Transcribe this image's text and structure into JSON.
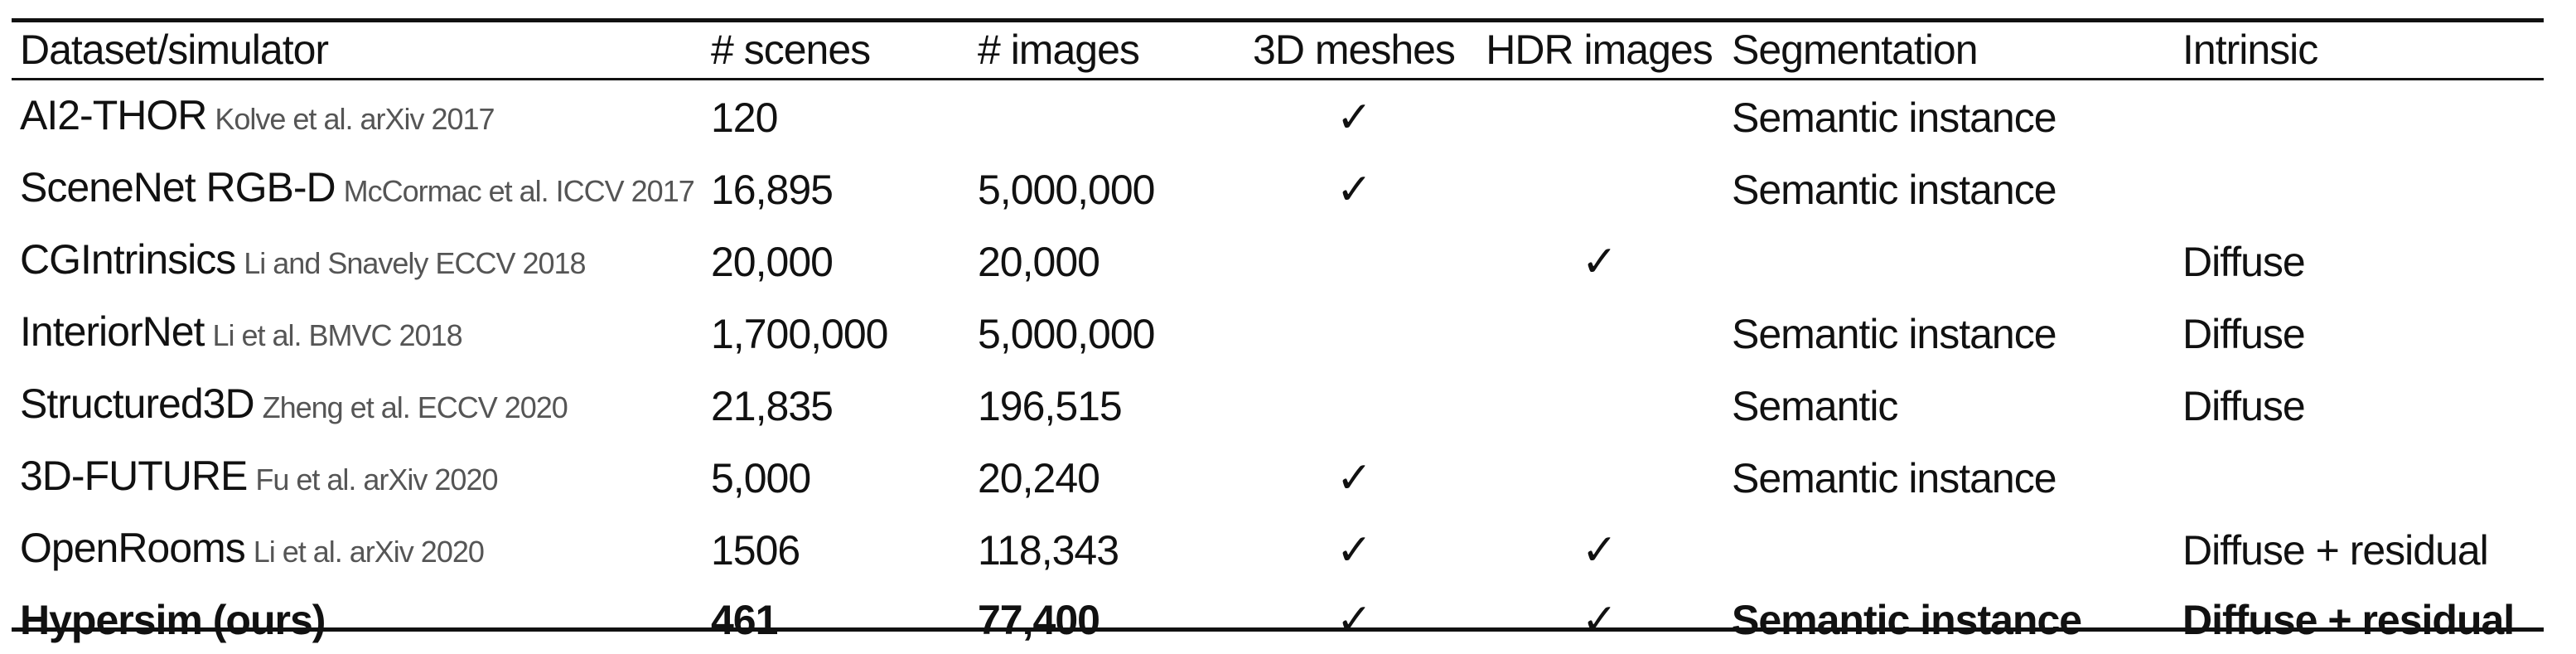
{
  "table": {
    "headers": {
      "dataset": "Dataset/simulator",
      "scenes": "# scenes",
      "images": "# images",
      "meshes": "3D meshes",
      "hdr": "HDR images",
      "segmentation": "Segmentation",
      "intrinsic": "Intrinsic"
    },
    "check_symbol": "✓",
    "rows": [
      {
        "name": "AI2-THOR",
        "citation": "Kolve et al. arXiv 2017",
        "scenes": "120",
        "images": "",
        "meshes": true,
        "hdr": false,
        "segmentation": "Semantic instance",
        "intrinsic": ""
      },
      {
        "name": "SceneNet RGB-D",
        "citation": "McCormac et al. ICCV 2017",
        "scenes": "16,895",
        "images": "5,000,000",
        "meshes": true,
        "hdr": false,
        "segmentation": "Semantic instance",
        "intrinsic": ""
      },
      {
        "name": "CGIntrinsics",
        "citation": "Li and Snavely ECCV 2018",
        "scenes": "20,000",
        "images": "20,000",
        "meshes": false,
        "hdr": true,
        "segmentation": "",
        "intrinsic": "Diffuse"
      },
      {
        "name": "InteriorNet",
        "citation": "Li et al. BMVC 2018",
        "scenes": "1,700,000",
        "images": "5,000,000",
        "meshes": false,
        "hdr": false,
        "segmentation": "Semantic instance",
        "intrinsic": "Diffuse"
      },
      {
        "name": "Structured3D",
        "citation": "Zheng et al. ECCV 2020",
        "scenes": "21,835",
        "images": "196,515",
        "meshes": false,
        "hdr": false,
        "segmentation": "Semantic",
        "intrinsic": "Diffuse"
      },
      {
        "name": "3D-FUTURE",
        "citation": "Fu et al. arXiv 2020",
        "scenes": "5,000",
        "images": "20,240",
        "meshes": true,
        "hdr": false,
        "segmentation": "Semantic instance",
        "intrinsic": ""
      },
      {
        "name": "OpenRooms",
        "citation": "Li et al. arXiv 2020",
        "scenes": "1506",
        "images": "118,343",
        "meshes": true,
        "hdr": true,
        "segmentation": "",
        "intrinsic": "Diffuse + residual"
      },
      {
        "name": "Hypersim (ours)",
        "citation": "",
        "scenes": "461",
        "images": "77,400",
        "meshes": true,
        "hdr": true,
        "segmentation": "Semantic instance",
        "intrinsic": "Diffuse + residual",
        "highlight": true
      }
    ]
  }
}
